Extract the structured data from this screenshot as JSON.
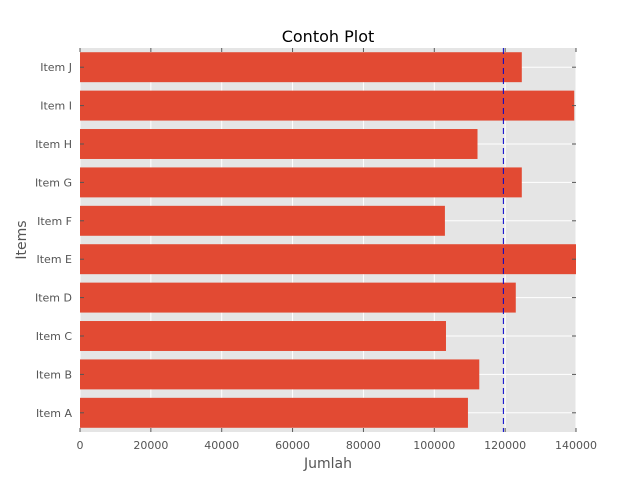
{
  "chart_data": {
    "type": "bar",
    "orientation": "horizontal",
    "title": "Contoh Plot",
    "xlabel": "Jumlah",
    "ylabel": "Items",
    "categories": [
      "Item A",
      "Item B",
      "Item C",
      "Item D",
      "Item E",
      "Item F",
      "Item G",
      "Item H",
      "Item I",
      "Item J"
    ],
    "values": [
      109500,
      112700,
      103300,
      123000,
      140500,
      103000,
      124700,
      112200,
      139500,
      124700
    ],
    "xlim": [
      0,
      140000
    ],
    "xticks": [
      0,
      20000,
      40000,
      60000,
      80000,
      100000,
      120000,
      140000
    ],
    "reference_line": {
      "x": 119500,
      "style": "dashed"
    },
    "grid": true,
    "colors": {
      "bar": "#e24a33",
      "background": "#e5e5e5",
      "grid": "#ffffff",
      "reference_line": "#0000cc"
    }
  }
}
